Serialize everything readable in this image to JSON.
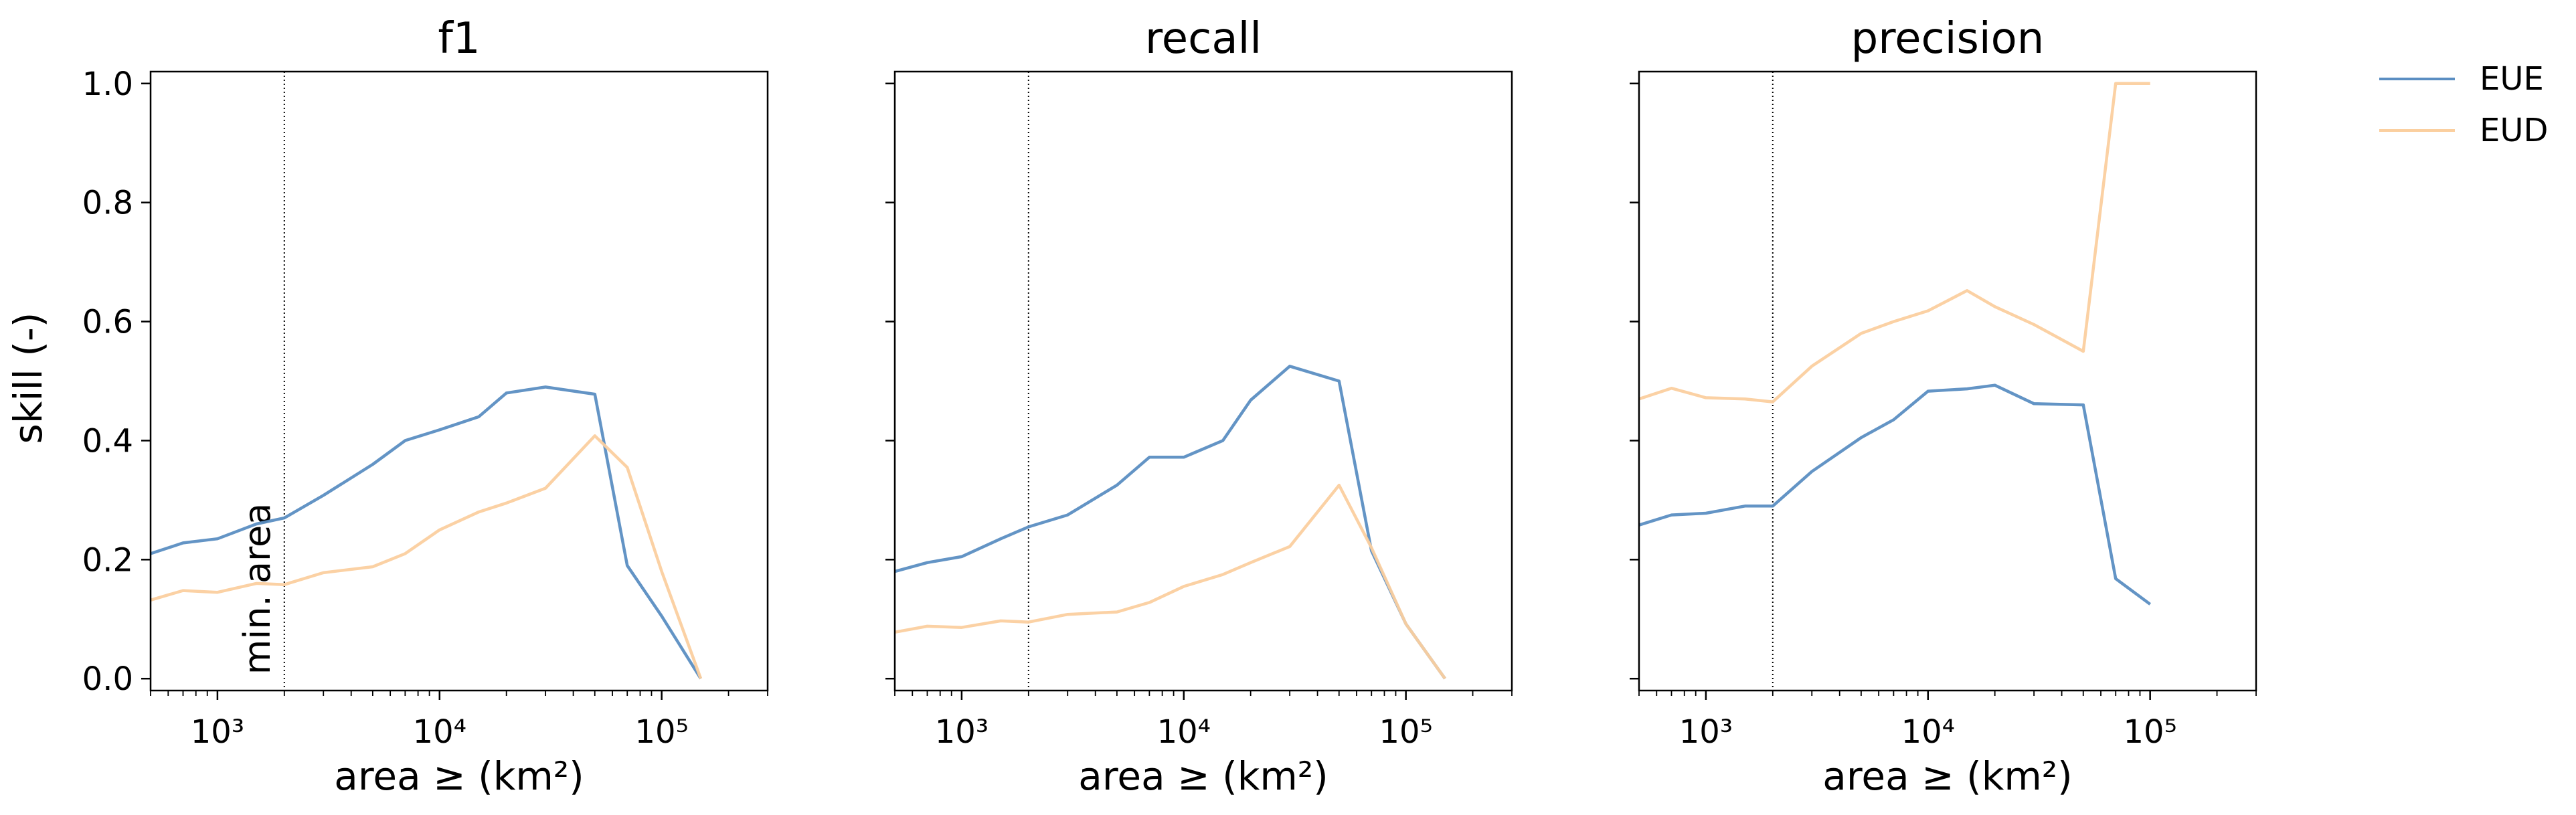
{
  "figure": {
    "ylabel": "skill (-)",
    "legend": {
      "placement": "outside-right",
      "entries": [
        {
          "name": "EUE",
          "color": "#5b8ec2"
        },
        {
          "name": "EUD",
          "color": "#fbcf9f"
        }
      ]
    },
    "min_area_label": "min. area"
  },
  "chart_data": [
    {
      "type": "line",
      "title": "f1",
      "xlabel": "area ≥ (km²)",
      "ylabel": "skill (-)",
      "xscale": "log",
      "xlim": [
        500,
        300000
      ],
      "ylim": [
        -0.02,
        1.02
      ],
      "xticks": [
        "10³",
        "10⁴",
        "10⁵"
      ],
      "yticks": [
        "0.0",
        "0.2",
        "0.4",
        "0.6",
        "0.8",
        "1.0"
      ],
      "reference_line": {
        "x": 2000,
        "label": "min. area"
      },
      "series": [
        {
          "name": "EUE",
          "color": "#5b8ec2",
          "x": [
            500,
            700,
            1000,
            1500,
            2000,
            3000,
            5000,
            7000,
            10000,
            15000,
            20000,
            30000,
            50000,
            70000,
            100000,
            150000
          ],
          "values": [
            0.21,
            0.228,
            0.235,
            0.26,
            0.27,
            0.308,
            0.36,
            0.4,
            0.418,
            0.44,
            0.48,
            0.49,
            0.478,
            0.19,
            0.105,
            0.0
          ]
        },
        {
          "name": "EUD",
          "color": "#fbcf9f",
          "x": [
            500,
            700,
            1000,
            1500,
            2000,
            3000,
            5000,
            7000,
            10000,
            15000,
            20000,
            30000,
            50000,
            70000,
            100000,
            150000
          ],
          "values": [
            0.132,
            0.148,
            0.145,
            0.16,
            0.158,
            0.178,
            0.188,
            0.21,
            0.25,
            0.28,
            0.295,
            0.32,
            0.408,
            0.355,
            0.18,
            0.0
          ]
        }
      ]
    },
    {
      "type": "line",
      "title": "recall",
      "xlabel": "area ≥ (km²)",
      "xscale": "log",
      "xlim": [
        500,
        300000
      ],
      "ylim": [
        -0.02,
        1.02
      ],
      "xticks": [
        "10³",
        "10⁴",
        "10⁵"
      ],
      "reference_line": {
        "x": 2000
      },
      "series": [
        {
          "name": "EUE",
          "color": "#5b8ec2",
          "x": [
            500,
            700,
            1000,
            1500,
            2000,
            3000,
            5000,
            7000,
            10000,
            15000,
            20000,
            30000,
            50000,
            70000,
            100000,
            150000
          ],
          "values": [
            0.18,
            0.195,
            0.205,
            0.235,
            0.255,
            0.275,
            0.325,
            0.372,
            0.372,
            0.4,
            0.468,
            0.525,
            0.5,
            0.215,
            0.092,
            0.0
          ]
        },
        {
          "name": "EUD",
          "color": "#fbcf9f",
          "x": [
            500,
            700,
            1000,
            1500,
            2000,
            3000,
            5000,
            7000,
            10000,
            15000,
            20000,
            30000,
            50000,
            70000,
            100000,
            150000
          ],
          "values": [
            0.078,
            0.088,
            0.086,
            0.097,
            0.095,
            0.108,
            0.112,
            0.128,
            0.155,
            0.175,
            0.195,
            0.222,
            0.325,
            0.22,
            0.092,
            0.0
          ]
        }
      ]
    },
    {
      "type": "line",
      "title": "precision",
      "xlabel": "area ≥ (km²)",
      "xscale": "log",
      "xlim": [
        500,
        300000
      ],
      "ylim": [
        -0.02,
        1.02
      ],
      "xticks": [
        "10³",
        "10⁴",
        "10⁵"
      ],
      "reference_line": {
        "x": 2000
      },
      "series": [
        {
          "name": "EUE",
          "color": "#5b8ec2",
          "x": [
            500,
            700,
            1000,
            1500,
            2000,
            3000,
            5000,
            7000,
            10000,
            15000,
            20000,
            30000,
            50000,
            70000,
            100000
          ],
          "values": [
            0.258,
            0.275,
            0.278,
            0.29,
            0.29,
            0.348,
            0.405,
            0.435,
            0.483,
            0.487,
            0.493,
            0.462,
            0.46,
            0.168,
            0.125
          ]
        },
        {
          "name": "EUD",
          "color": "#fbcf9f",
          "x": [
            500,
            700,
            1000,
            1500,
            2000,
            3000,
            5000,
            7000,
            10000,
            15000,
            20000,
            30000,
            50000,
            70000,
            100000
          ],
          "values": [
            0.47,
            0.488,
            0.472,
            0.47,
            0.465,
            0.525,
            0.58,
            0.6,
            0.618,
            0.652,
            0.625,
            0.595,
            0.55,
            1.0,
            1.0
          ]
        }
      ]
    }
  ]
}
